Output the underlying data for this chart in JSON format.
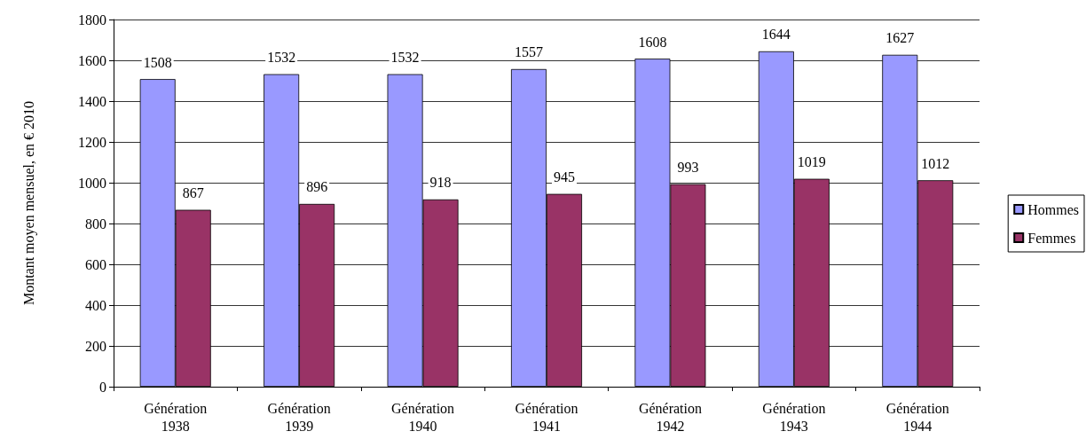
{
  "chart_data": {
    "type": "bar",
    "ylabel": "Montant moyen mensuel, en € 2010",
    "categories": [
      "Génération 1938",
      "Génération 1939",
      "Génération 1940",
      "Génération 1941",
      "Génération 1942",
      "Génération 1943",
      "Génération 1944"
    ],
    "series": [
      {
        "name": "Hommes",
        "color": "#9999ff",
        "values": [
          1508,
          1532,
          1532,
          1557,
          1608,
          1644,
          1627
        ]
      },
      {
        "name": "Femmes",
        "color": "#993366",
        "values": [
          867,
          896,
          918,
          945,
          993,
          1019,
          1012
        ]
      }
    ],
    "ylim": [
      0,
      1800
    ],
    "yticks": [
      0,
      200,
      400,
      600,
      800,
      1000,
      1200,
      1400,
      1600,
      1800
    ],
    "grid": "y",
    "legend": "right",
    "data_labels": true
  }
}
